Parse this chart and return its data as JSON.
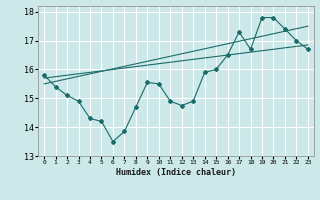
{
  "xlabel": "Humidex (Indice chaleur)",
  "ylabel": "",
  "bg_color": "#cce8e8",
  "grid_color": "#ffffff",
  "line_color": "#1a6b6b",
  "xlim": [
    -0.5,
    23.5
  ],
  "ylim": [
    13,
    18.2
  ],
  "yticks": [
    13,
    14,
    15,
    16,
    17,
    18
  ],
  "xticks": [
    0,
    1,
    2,
    3,
    4,
    5,
    6,
    7,
    8,
    9,
    10,
    11,
    12,
    13,
    14,
    15,
    16,
    17,
    18,
    19,
    20,
    21,
    22,
    23
  ],
  "data_x": [
    0,
    1,
    2,
    3,
    4,
    5,
    6,
    7,
    8,
    9,
    10,
    11,
    12,
    13,
    14,
    15,
    16,
    17,
    18,
    19,
    20,
    21,
    22,
    23
  ],
  "data_y": [
    15.8,
    15.4,
    15.1,
    14.9,
    14.3,
    14.2,
    13.5,
    13.85,
    14.7,
    15.55,
    15.5,
    14.9,
    14.75,
    14.9,
    15.9,
    16.0,
    16.5,
    17.3,
    16.7,
    17.8,
    17.8,
    17.4,
    17.0,
    16.7
  ],
  "trend1_x": [
    0,
    23
  ],
  "trend1_y": [
    15.7,
    16.85
  ],
  "trend2_x": [
    0,
    23
  ],
  "trend2_y": [
    15.5,
    17.5
  ]
}
